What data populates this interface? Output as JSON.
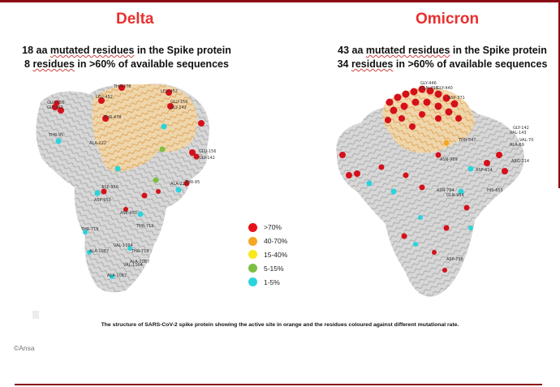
{
  "delta": {
    "title": "Delta",
    "count_line_prefix": "18 aa ",
    "count_line_emph": "mutated residues",
    "count_line_suffix": " in the Spike protein",
    "share_line_prefix": "8 ",
    "share_line_emph": "residues",
    "share_line_suffix": " in >60% of available sequences",
    "labels": [
      "THR-478",
      "LEU-452",
      "LEU-452",
      "GLU-156",
      "GLY-142",
      "THR-478",
      "GLU-156",
      "GLY-142",
      "THR-95",
      "ALA-222",
      "GLU-156",
      "GLY-142",
      "ALA-222",
      "THR-95",
      "ASP-950",
      "ASP-950",
      "ASE-950",
      "THR-719",
      "THR-719",
      "VAL-1104",
      "ALA-1087",
      "THR-719",
      "ALA-1087",
      "VAL-1104",
      "ALA-1087"
    ]
  },
  "omicron": {
    "title": "Omicron",
    "count_line_prefix": "43 aa ",
    "count_line_emph": "mutated residues",
    "count_line_suffix": " in the Spike protein",
    "share_line_prefix": "34 ",
    "share_line_emph": "residues",
    "share_line_suffix": " in >60% of available sequences",
    "labels": [
      "GLY-446",
      "GLN-498",
      "GLY-440",
      "ASP-371",
      "GLY-142",
      "VAL-143",
      "VAL-70",
      "ALA-69",
      "THR-547",
      "ARG-214",
      "ASP-614",
      "ASN-969",
      "ASN-764",
      "HIS-655",
      "GLN-954",
      "ASP-796"
    ]
  },
  "legend": [
    {
      "label": ">70%",
      "color": "#e8101a"
    },
    {
      "label": "40-70%",
      "color": "#f5a623"
    },
    {
      "label": "15-40%",
      "color": "#f7e81a"
    },
    {
      "label": "5-15%",
      "color": "#7bc043"
    },
    {
      "label": "1-5%",
      "color": "#2ad4dc"
    }
  ],
  "caption": "The structure of SARS-CoV-2 spike protein showing the active site in orange and the residues coloured against different mutational rate.",
  "credit": "©Ansa"
}
